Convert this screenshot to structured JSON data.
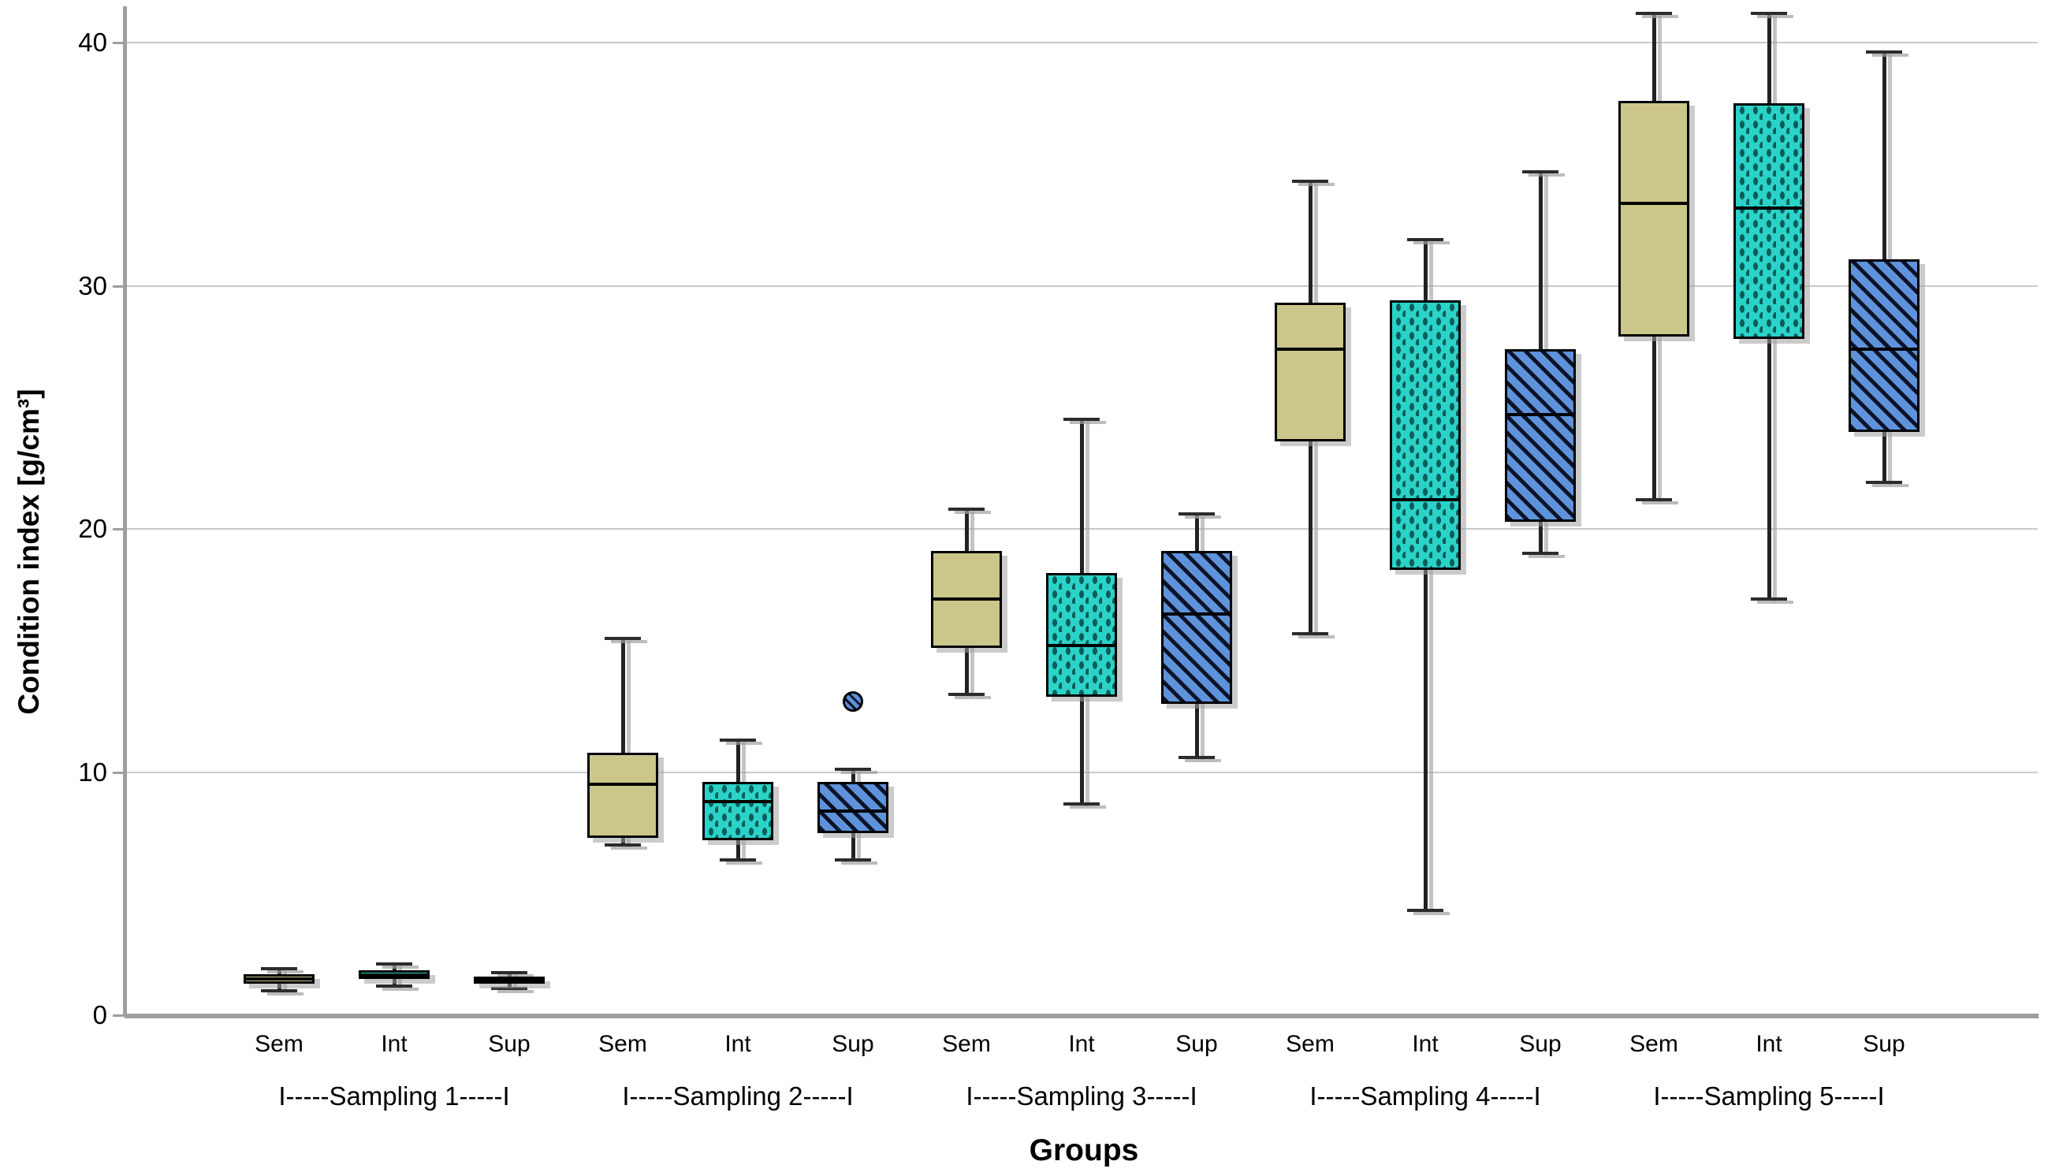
{
  "y_axis": {
    "title": "Condition index [g/cm³]",
    "ticks": [
      "0",
      "10",
      "20",
      "30",
      "40"
    ],
    "tick_values": [
      0,
      10,
      20,
      30,
      40
    ],
    "range": [
      0,
      41.75
    ],
    "gridlines": true,
    "gridline_color": "#c9c9c9",
    "axis_color": "#9e9e9e"
  },
  "x_axis": {
    "title": "Groups",
    "member_labels": [
      "Sem",
      "Int",
      "Sup"
    ]
  },
  "chart_data": {
    "type": "boxplot",
    "title": "",
    "ylabel": "Condition index [g/cm³]",
    "xlabel": "Groups",
    "ylim": [
      0,
      41.75
    ],
    "legend_position": "none",
    "styles": {
      "Sem": {
        "fill": "#cbc68a",
        "pattern": "solid",
        "pattern_color": "#cbc68a"
      },
      "Int": {
        "fill": "#2bd2c8",
        "pattern": "dots",
        "pattern_color": "#0a5d58"
      },
      "Sup": {
        "fill": "#5e92da",
        "pattern": "diagonal",
        "pattern_color": "#0c1326"
      }
    },
    "groups": [
      {
        "name": "Sampling 1",
        "label": "I-----Sampling 1-----I",
        "boxes": [
          {
            "category": "Sem",
            "whisker_low": 1.0,
            "q1": 1.3,
            "median": 1.5,
            "q3": 1.7,
            "whisker_high": 1.9,
            "outliers": []
          },
          {
            "category": "Int",
            "whisker_low": 1.2,
            "q1": 1.5,
            "median": 1.65,
            "q3": 1.85,
            "whisker_high": 2.1,
            "outliers": []
          },
          {
            "category": "Sup",
            "whisker_low": 1.1,
            "q1": 1.3,
            "median": 1.45,
            "q3": 1.6,
            "whisker_high": 1.75,
            "outliers": []
          }
        ]
      },
      {
        "name": "Sampling 2",
        "label": "I-----Sampling 2-----I",
        "boxes": [
          {
            "category": "Sem",
            "whisker_low": 7.0,
            "q1": 7.3,
            "median": 9.5,
            "q3": 10.8,
            "whisker_high": 15.5,
            "outliers": []
          },
          {
            "category": "Int",
            "whisker_low": 6.4,
            "q1": 7.2,
            "median": 8.8,
            "q3": 9.6,
            "whisker_high": 11.3,
            "outliers": []
          },
          {
            "category": "Sup",
            "whisker_low": 6.4,
            "q1": 7.5,
            "median": 8.4,
            "q3": 9.6,
            "whisker_high": 10.1,
            "outliers": [
              12.9
            ]
          }
        ]
      },
      {
        "name": "Sampling 3",
        "label": "I-----Sampling 3-----I",
        "boxes": [
          {
            "category": "Sem",
            "whisker_low": 13.2,
            "q1": 15.1,
            "median": 17.1,
            "q3": 19.1,
            "whisker_high": 20.8,
            "outliers": []
          },
          {
            "category": "Int",
            "whisker_low": 8.7,
            "q1": 13.1,
            "median": 15.2,
            "q3": 18.2,
            "whisker_high": 24.5,
            "outliers": []
          },
          {
            "category": "Sup",
            "whisker_low": 10.6,
            "q1": 12.8,
            "median": 16.5,
            "q3": 19.1,
            "whisker_high": 20.6,
            "outliers": []
          }
        ]
      },
      {
        "name": "Sampling 4",
        "label": "I-----Sampling 4-----I",
        "boxes": [
          {
            "category": "Sem",
            "whisker_low": 15.7,
            "q1": 23.6,
            "median": 27.4,
            "q3": 29.3,
            "whisker_high": 34.3,
            "outliers": []
          },
          {
            "category": "Int",
            "whisker_low": 4.3,
            "q1": 18.3,
            "median": 21.2,
            "q3": 29.4,
            "whisker_high": 31.9,
            "outliers": []
          },
          {
            "category": "Sup",
            "whisker_low": 19.0,
            "q1": 20.3,
            "median": 24.7,
            "q3": 27.4,
            "whisker_high": 34.7,
            "outliers": []
          }
        ]
      },
      {
        "name": "Sampling 5",
        "label": "I-----Sampling 5-----I",
        "boxes": [
          {
            "category": "Sem",
            "whisker_low": 21.2,
            "q1": 27.9,
            "median": 33.4,
            "q3": 37.6,
            "whisker_high": 41.2,
            "outliers": []
          },
          {
            "category": "Int",
            "whisker_low": 17.1,
            "q1": 27.8,
            "median": 33.2,
            "q3": 37.5,
            "whisker_high": 41.2,
            "outliers": []
          },
          {
            "category": "Sup",
            "whisker_low": 21.9,
            "q1": 24.0,
            "median": 27.4,
            "q3": 31.1,
            "whisker_high": 39.6,
            "outliers": []
          }
        ]
      }
    ]
  }
}
